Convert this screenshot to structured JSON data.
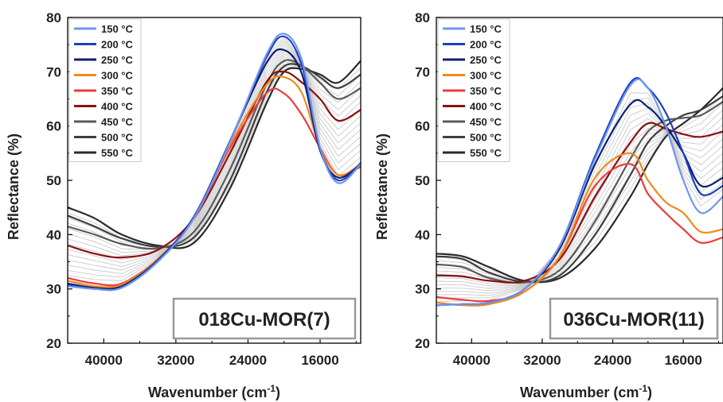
{
  "chart_data": [
    {
      "type": "line",
      "title": "",
      "sample_label": "018Cu-MOR(7)",
      "xlabel": "Wavenumber (cm",
      "xlabel_sup": "-1",
      "xlabel_close": ")",
      "ylabel": "Reflectance (%)",
      "xlim": [
        44000,
        11500
      ],
      "ylim": [
        20,
        80
      ],
      "xticks": [
        40000,
        32000,
        24000,
        16000
      ],
      "yticks": [
        20,
        30,
        40,
        50,
        60,
        70,
        80
      ],
      "legend_position": "top-left",
      "series": [
        {
          "name": "150 °C",
          "color": "#6f96ef",
          "x": [
            44000,
            41000,
            38000,
            34000,
            30000,
            26000,
            22000,
            20000,
            18000,
            16000,
            14000,
            11500
          ],
          "y": [
            30.5,
            30.0,
            30.2,
            35.0,
            43.0,
            57.0,
            73.0,
            77.0,
            72.0,
            56.0,
            49.5,
            53.0
          ]
        },
        {
          "name": "200 °C",
          "color": "#1f3fbf",
          "x": [
            44000,
            41000,
            38000,
            34000,
            30000,
            26000,
            22000,
            20000,
            18000,
            16000,
            14000,
            11500
          ],
          "y": [
            30.8,
            30.0,
            30.3,
            35.2,
            43.2,
            57.2,
            72.5,
            76.5,
            71.0,
            56.0,
            50.0,
            53.2
          ]
        },
        {
          "name": "250 °C",
          "color": "#0b1f6e",
          "x": [
            44000,
            41000,
            38000,
            34000,
            30000,
            26000,
            22000,
            20000,
            18000,
            16000,
            14000,
            11500
          ],
          "y": [
            31.0,
            30.2,
            30.5,
            35.3,
            43.3,
            57.2,
            71.5,
            74.0,
            69.5,
            55.5,
            50.5,
            53.0
          ]
        },
        {
          "name": "300 °C",
          "color": "#f08a1c",
          "x": [
            44000,
            41000,
            38000,
            34000,
            30000,
            26000,
            22000,
            20000,
            18000,
            16000,
            14000,
            11500
          ],
          "y": [
            31.5,
            30.5,
            30.8,
            35.5,
            43.0,
            56.5,
            67.5,
            69.0,
            66.0,
            56.0,
            51.0,
            53.0
          ]
        },
        {
          "name": "350 °C",
          "color": "#ee3b3b",
          "x": [
            44000,
            41000,
            38000,
            34000,
            30000,
            26000,
            22000,
            20000,
            18000,
            16000,
            14000,
            11500
          ],
          "y": [
            32.0,
            31.0,
            31.0,
            35.5,
            43.0,
            56.0,
            66.0,
            66.0,
            62.0,
            56.0,
            51.0,
            52.5
          ]
        },
        {
          "name": "400 °C",
          "color": "#8b1010",
          "x": [
            44000,
            41000,
            38000,
            34000,
            30000,
            26000,
            22000,
            20000,
            18000,
            16000,
            14000,
            11500
          ],
          "y": [
            38.0,
            36.5,
            35.8,
            37.2,
            43.0,
            55.0,
            68.0,
            70.0,
            68.0,
            65.0,
            61.0,
            63.0
          ]
        },
        {
          "name": "450 °C",
          "color": "#5a5a5a",
          "x": [
            44000,
            41000,
            38000,
            34000,
            30000,
            26000,
            22000,
            20000,
            18000,
            16000,
            14000,
            11500
          ],
          "y": [
            41.5,
            40.0,
            38.3,
            37.5,
            40.5,
            52.0,
            67.5,
            72.0,
            71.0,
            68.0,
            65.0,
            67.0
          ]
        },
        {
          "name": "500 °C",
          "color": "#3e3e3e",
          "x": [
            44000,
            41000,
            38000,
            34000,
            30000,
            26000,
            22000,
            20000,
            18000,
            16000,
            14000,
            11500
          ],
          "y": [
            43.5,
            41.5,
            39.3,
            37.8,
            39.5,
            50.0,
            66.0,
            71.0,
            71.0,
            69.0,
            67.0,
            69.5
          ]
        },
        {
          "name": "550 °C",
          "color": "#2a2a2a",
          "x": [
            44000,
            41000,
            38000,
            34000,
            30000,
            26000,
            22000,
            20000,
            18000,
            16000,
            14000,
            11500
          ],
          "y": [
            45.0,
            43.0,
            40.0,
            38.0,
            38.5,
            48.5,
            64.0,
            70.0,
            70.5,
            69.5,
            68.0,
            72.0
          ]
        }
      ]
    },
    {
      "type": "line",
      "title": "",
      "sample_label": "036Cu-MOR(11)",
      "xlabel": "Wavenumber (cm",
      "xlabel_sup": "-1",
      "xlabel_close": ")",
      "ylabel": "Reflectance (%)",
      "xlim": [
        44000,
        11500
      ],
      "ylim": [
        20,
        80
      ],
      "xticks": [
        40000,
        32000,
        24000,
        16000
      ],
      "yticks": [
        20,
        30,
        40,
        50,
        60,
        70,
        80
      ],
      "legend_position": "top-left",
      "series": [
        {
          "name": "150 °C",
          "color": "#6f96ef",
          "x": [
            44000,
            41000,
            38000,
            34000,
            30000,
            26000,
            22000,
            20000,
            18000,
            16000,
            14000,
            11500
          ],
          "y": [
            27.0,
            27.2,
            27.5,
            30.0,
            38.0,
            54.0,
            67.5,
            67.0,
            60.0,
            50.0,
            44.0,
            47.0
          ]
        },
        {
          "name": "200 °C",
          "color": "#1f3fbf",
          "x": [
            44000,
            41000,
            38000,
            34000,
            30000,
            26000,
            22000,
            20000,
            18000,
            16000,
            14000,
            11500
          ],
          "y": [
            27.0,
            27.2,
            27.5,
            30.0,
            38.0,
            54.5,
            68.0,
            67.0,
            62.5,
            55.0,
            47.5,
            49.0
          ]
        },
        {
          "name": "250 °C",
          "color": "#0b1f6e",
          "x": [
            44000,
            41000,
            38000,
            34000,
            30000,
            26000,
            22000,
            20000,
            18000,
            16000,
            14000,
            11500
          ],
          "y": [
            27.0,
            27.2,
            27.5,
            30.0,
            37.5,
            53.0,
            64.0,
            63.5,
            60.0,
            55.0,
            49.0,
            50.5
          ]
        },
        {
          "name": "300 °C",
          "color": "#f08a1c",
          "x": [
            44000,
            41000,
            38000,
            34000,
            30000,
            26000,
            22000,
            20000,
            18000,
            16000,
            14000,
            11500
          ],
          "y": [
            27.5,
            27.0,
            27.2,
            29.5,
            36.0,
            50.5,
            55.0,
            50.0,
            46.0,
            44.0,
            40.5,
            41.0
          ]
        },
        {
          "name": "350 °C",
          "color": "#ee3b3b",
          "x": [
            44000,
            41000,
            38000,
            34000,
            30000,
            26000,
            22000,
            20000,
            18000,
            16000,
            14000,
            11500
          ],
          "y": [
            28.5,
            28.0,
            27.8,
            29.5,
            36.0,
            49.0,
            53.0,
            47.5,
            44.0,
            41.0,
            38.5,
            39.5
          ]
        },
        {
          "name": "400 °C",
          "color": "#8b1010",
          "x": [
            44000,
            41000,
            38000,
            34000,
            30000,
            26000,
            22000,
            20000,
            18000,
            16000,
            14000,
            11500
          ],
          "y": [
            32.5,
            32.3,
            31.5,
            31.5,
            35.5,
            47.0,
            57.0,
            60.5,
            59.5,
            58.5,
            58.0,
            59.0
          ]
        },
        {
          "name": "450 °C",
          "color": "#5a5a5a",
          "x": [
            44000,
            41000,
            38000,
            34000,
            30000,
            26000,
            22000,
            20000,
            18000,
            16000,
            14000,
            11500
          ],
          "y": [
            34.5,
            34.0,
            32.0,
            31.2,
            33.5,
            42.5,
            54.0,
            59.0,
            61.0,
            61.5,
            62.0,
            64.5
          ]
        },
        {
          "name": "500 °C",
          "color": "#3e3e3e",
          "x": [
            44000,
            41000,
            38000,
            34000,
            30000,
            26000,
            22000,
            20000,
            18000,
            16000,
            14000,
            11500
          ],
          "y": [
            36.0,
            35.5,
            33.0,
            31.3,
            32.5,
            40.0,
            51.0,
            57.0,
            60.0,
            62.0,
            63.0,
            65.5
          ]
        },
        {
          "name": "550 °C",
          "color": "#2a2a2a",
          "x": [
            44000,
            41000,
            38000,
            34000,
            30000,
            26000,
            22000,
            20000,
            18000,
            16000,
            14000,
            11500
          ],
          "y": [
            36.5,
            36.0,
            34.0,
            31.5,
            32.0,
            37.5,
            47.0,
            53.0,
            58.0,
            60.5,
            63.0,
            67.0
          ]
        }
      ]
    }
  ]
}
